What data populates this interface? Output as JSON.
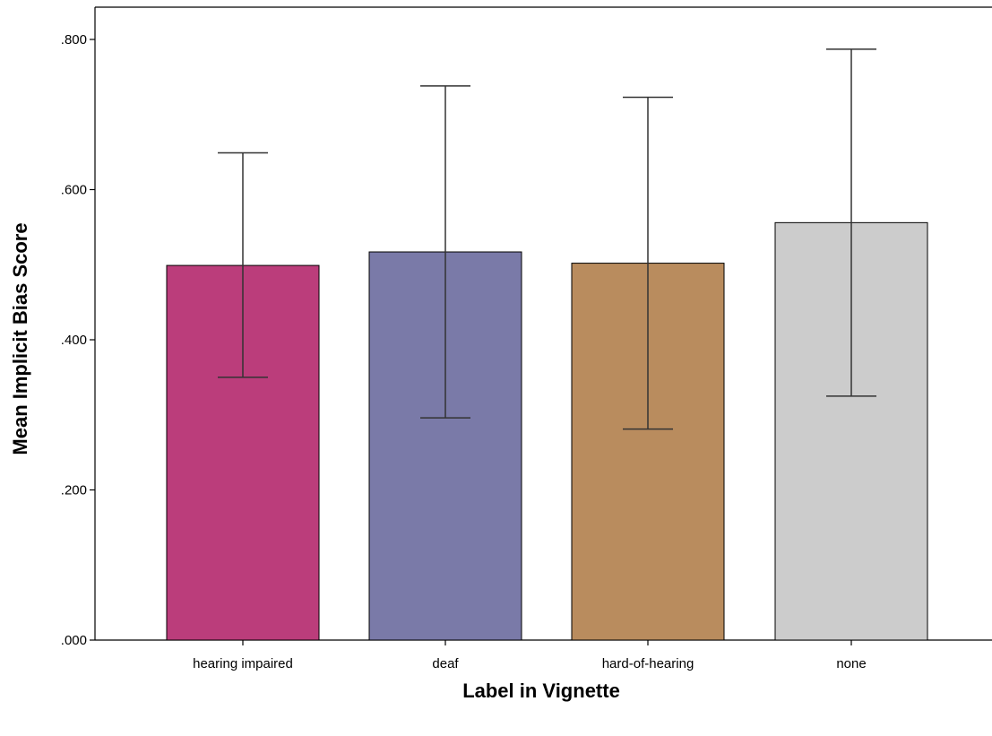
{
  "chart_data": {
    "type": "bar",
    "categories": [
      "hearing impaired",
      "deaf",
      "hard-of-hearing",
      "none"
    ],
    "values": [
      0.499,
      0.517,
      0.502,
      0.556
    ],
    "error_low": [
      0.35,
      0.296,
      0.281,
      0.325
    ],
    "error_high": [
      0.649,
      0.738,
      0.723,
      0.787
    ],
    "colors": [
      "#bb3d7b",
      "#7a7aa8",
      "#b98c5e",
      "#cccccc"
    ],
    "xlabel": "Label in Vignette",
    "ylabel": "Mean Implicit Bias Score",
    "ylim": [
      0,
      0.8
    ],
    "yticks": [
      ".000",
      ".200",
      ".400",
      ".600",
      ".800"
    ],
    "grid": false
  }
}
